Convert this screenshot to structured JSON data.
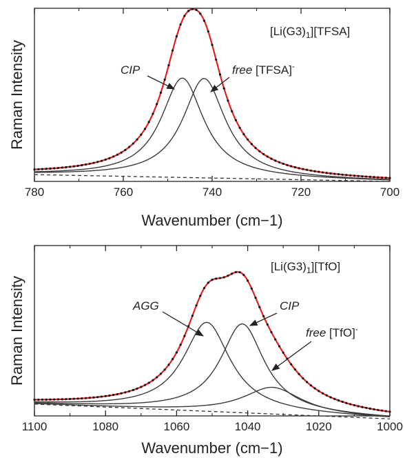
{
  "chart_data": [
    {
      "type": "line",
      "panel_label": "[Li(G3)1][TFSA]",
      "label_parts": {
        "main": "[Li(G3)",
        "sub": "1",
        "rest": "][TFSA]"
      },
      "xlabel": "Wavenumber (cm−1)",
      "ylabel": "Raman Intensity",
      "xlim": [
        780,
        700
      ],
      "ylim": [
        0,
        1.15
      ],
      "x_reversed": true,
      "x_ticks": [
        "780",
        "760",
        "740",
        "720",
        "700"
      ],
      "baseline": [
        [
          780,
          0.045
        ],
        [
          700,
          0.0
        ]
      ],
      "components": [
        {
          "label_italic": "CIP",
          "label_rest": "",
          "center": 746.7,
          "height": 0.66,
          "hwhm": 5.8
        },
        {
          "label_italic": "free",
          "label_rest": " [TFSA]",
          "label_sup": "-",
          "center": 741.8,
          "height": 0.66,
          "hwhm": 5.8
        }
      ],
      "series": [
        {
          "role": "fit",
          "color": "#e02020"
        },
        {
          "role": "experimental",
          "color": "#111111"
        }
      ]
    },
    {
      "type": "line",
      "panel_label": "[Li(G3)1][TfO]",
      "label_parts": {
        "main": "[Li(G3)",
        "sub": "1",
        "rest": "][TfO]"
      },
      "xlabel": "Wavenumber (cm−1)",
      "ylabel": "Raman Intensity",
      "xlim": [
        1100,
        1000
      ],
      "ylim": [
        0,
        1.15
      ],
      "x_reversed": true,
      "x_ticks": [
        "1100",
        "1080",
        "1060",
        "1040",
        "1020",
        "1000"
      ],
      "baseline": [
        [
          1100,
          0.08
        ],
        [
          1000,
          -0.02
        ]
      ],
      "components": [
        {
          "label_italic": "AGG",
          "label_rest": "",
          "center": 1051.5,
          "height": 0.6,
          "hwhm": 8.0
        },
        {
          "label_italic": "CIP",
          "label_rest": "",
          "center": 1041.5,
          "height": 0.6,
          "hwhm": 7.5
        },
        {
          "label_italic": "free",
          "label_rest": " [TfO]",
          "label_sup": "-",
          "center": 1033.0,
          "height": 0.18,
          "hwhm": 10.0
        }
      ],
      "series": [
        {
          "role": "fit",
          "color": "#e02020"
        },
        {
          "role": "experimental",
          "color": "#111111"
        }
      ]
    }
  ]
}
